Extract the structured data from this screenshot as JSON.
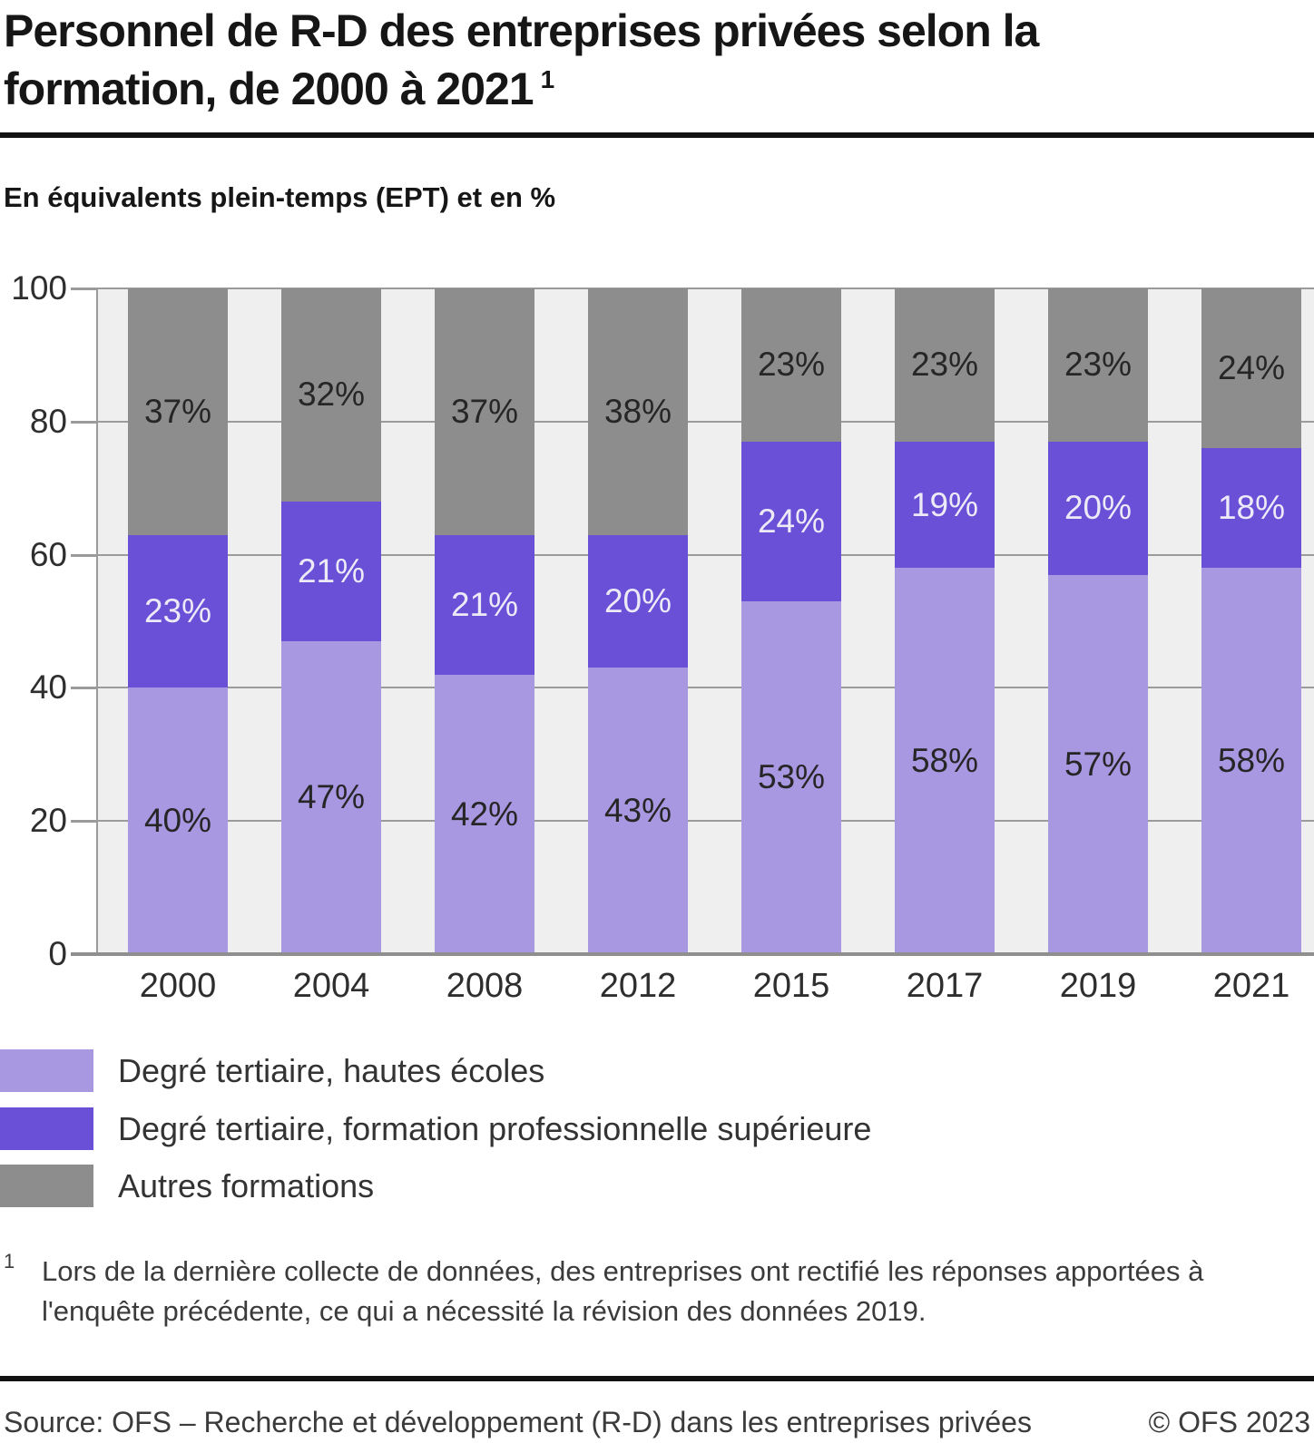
{
  "header": {
    "title_line1": "Personnel de R-D des entreprises privées selon la",
    "title_line2": "formation, de 2000 à 2021",
    "title_footnote_marker": "1",
    "subtitle": "En équivalents plein-temps (EPT) et en %"
  },
  "chart_data": {
    "type": "bar",
    "subtype": "stacked-100-percent",
    "title": "Personnel de R-D des entreprises privées selon la formation, de 2000 à 2021",
    "unit_note": "En équivalents plein-temps (EPT) et en %",
    "categories": [
      "2000",
      "2004",
      "2008",
      "2012",
      "2015",
      "2017",
      "2019",
      "2021"
    ],
    "series": [
      {
        "name": "Degré tertiaire, hautes écoles",
        "color": "#a897e1",
        "label_color": "#262626",
        "values": [
          40,
          47,
          42,
          43,
          53,
          58,
          57,
          58
        ],
        "labels": [
          "40%",
          "47%",
          "42%",
          "43%",
          "53%",
          "58%",
          "57%",
          "58%"
        ]
      },
      {
        "name": "Degré tertiaire, formation professionnelle supérieure",
        "color": "#6950d6",
        "label_color": "#edeaf8",
        "values": [
          23,
          21,
          21,
          20,
          24,
          19,
          20,
          18
        ],
        "labels": [
          "23%",
          "21%",
          "21%",
          "20%",
          "24%",
          "19%",
          "20%",
          "18%"
        ]
      },
      {
        "name": "Autres formations",
        "color": "#8d8d8d",
        "label_color": "#262626",
        "values": [
          37,
          32,
          37,
          38,
          23,
          23,
          23,
          24
        ],
        "labels": [
          "37%",
          "32%",
          "37%",
          "38%",
          "23%",
          "23%",
          "23%",
          "24%"
        ]
      }
    ],
    "ylim": [
      0,
      100
    ],
    "yticks": [
      0,
      20,
      40,
      60,
      80,
      100
    ],
    "ytick_labels": [
      "0",
      "20",
      "40",
      "60",
      "80",
      "100"
    ],
    "grid": true,
    "plot_background": "#efefef",
    "gridline_color": "#9b9b9b",
    "legend_position": "bottom-left"
  },
  "footnote": {
    "marker": "1",
    "lines": [
      "Lors de la dernière collecte de données, des entreprises ont rectifié les réponses apportées à",
      "l'enquête précédente, ce qui a nécessité la révision des données 2019."
    ]
  },
  "footer": {
    "source": "Source: OFS – Recherche et développement (R-D) dans les entreprises privées",
    "copyright": "© OFS 2023"
  }
}
